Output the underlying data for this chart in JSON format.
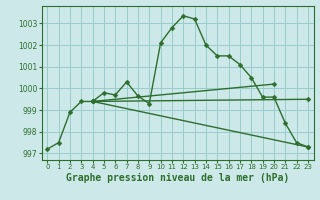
{
  "title": "Graphe pression niveau de la mer (hPa)",
  "background_color": "#cce8e8",
  "grid_color": "#99cccc",
  "line_color": "#2d6e2d",
  "xlim": [
    -0.5,
    23.5
  ],
  "ylim": [
    996.7,
    1003.8
  ],
  "yticks": [
    997,
    998,
    999,
    1000,
    1001,
    1002,
    1003
  ],
  "xticks": [
    0,
    1,
    2,
    3,
    4,
    5,
    6,
    7,
    8,
    9,
    10,
    11,
    12,
    13,
    14,
    15,
    16,
    17,
    18,
    19,
    20,
    21,
    22,
    23
  ],
  "series": [
    {
      "x": [
        0,
        1,
        2,
        3,
        4,
        5,
        6,
        7,
        8,
        9,
        10,
        11,
        12,
        13,
        14,
        15,
        16,
        17,
        18,
        19,
        20,
        21,
        22,
        23
      ],
      "y": [
        997.2,
        997.5,
        998.9,
        999.4,
        999.4,
        999.8,
        999.7,
        1000.3,
        999.65,
        999.3,
        1002.1,
        1002.8,
        1003.35,
        1003.2,
        1002.0,
        1001.5,
        1001.5,
        1001.1,
        1000.5,
        999.6,
        999.6,
        998.4,
        997.5,
        997.3
      ]
    },
    {
      "x": [
        4,
        23
      ],
      "y": [
        999.4,
        997.3
      ]
    },
    {
      "x": [
        4,
        23
      ],
      "y": [
        999.4,
        999.5
      ]
    },
    {
      "x": [
        4,
        20
      ],
      "y": [
        999.4,
        1000.2
      ]
    }
  ],
  "marker": "D",
  "marker_size": 2.5,
  "line_width": 1.0,
  "title_fontsize": 7,
  "tick_fontsize": 5.5
}
